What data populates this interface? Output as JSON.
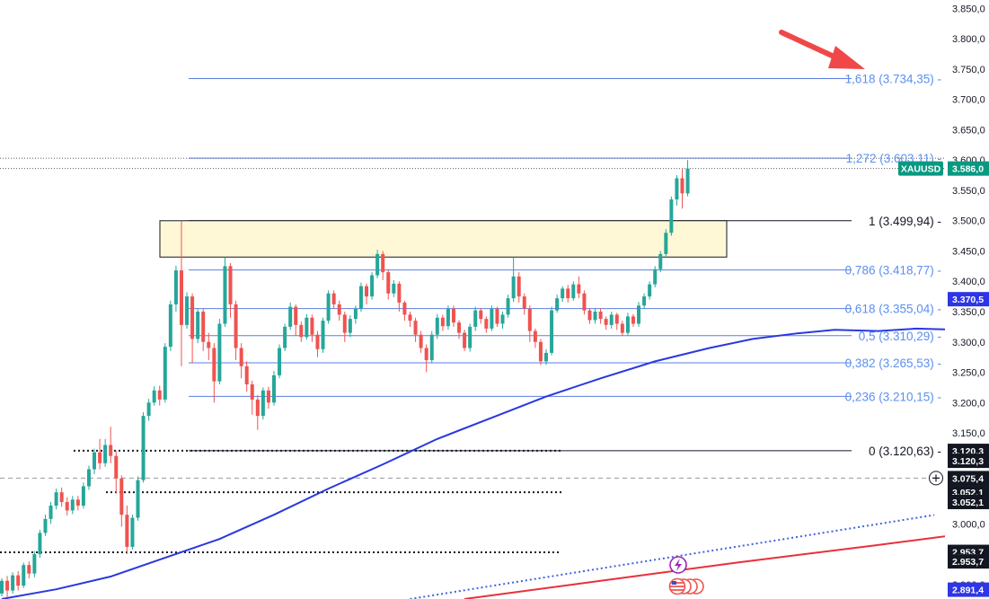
{
  "colors": {
    "up": "#26a69a",
    "down": "#ef5350",
    "fib_line": "#5b7fe0",
    "fib_text": "#5b8ff0",
    "ma_blue": "#2a38e0",
    "ma_red": "#e8303a",
    "trend": "#3f63e0",
    "zone_fill": "#fff8d6",
    "arrow": "#f04848",
    "price_tag": "#089981",
    "ma_tag": "#2e35e6"
  },
  "chart_data": {
    "type": "candlestick",
    "symbol": "XAUUSD",
    "ylim": [
      2876,
      3864
    ],
    "y_ticks": [
      {
        "value": 2900,
        "label": "2.900,0"
      },
      {
        "value": 2950,
        "label": "2.950,0"
      },
      {
        "value": 3000,
        "label": "3.000,0"
      },
      {
        "value": 3050,
        "label": "3.050,0"
      },
      {
        "value": 3100,
        "label": "3.100,0"
      },
      {
        "value": 3150,
        "label": "3.150,0"
      },
      {
        "value": 3200,
        "label": "3.200,0"
      },
      {
        "value": 3250,
        "label": "3.250,0"
      },
      {
        "value": 3300,
        "label": "3.300,0"
      },
      {
        "value": 3350,
        "label": "3.350,0"
      },
      {
        "value": 3400,
        "label": "3.400,0"
      },
      {
        "value": 3450,
        "label": "3.450,0"
      },
      {
        "value": 3500,
        "label": "3.500,0"
      },
      {
        "value": 3550,
        "label": "3.550,0"
      },
      {
        "value": 3600,
        "label": "3.600,0"
      },
      {
        "value": 3650,
        "label": "3.650,0"
      },
      {
        "value": 3700,
        "label": "3.700,0"
      },
      {
        "value": 3750,
        "label": "3.750,0"
      },
      {
        "value": 3800,
        "label": "3.800,0"
      },
      {
        "value": 3850,
        "label": "3.850,0"
      }
    ],
    "fib_levels": [
      {
        "ratio": "1,618",
        "value": 3734.35,
        "label": "1,618 (3.734,35)"
      },
      {
        "ratio": "1,272",
        "value": 3603.11,
        "label": "1,272 (3.603,11)"
      },
      {
        "ratio": "1",
        "value": 3499.94,
        "label": "1 (3.499,94)"
      },
      {
        "ratio": "0,786",
        "value": 3418.77,
        "label": "0,786 (3.418,77)"
      },
      {
        "ratio": "0,618",
        "value": 3355.04,
        "label": "0,618 (3.355,04)"
      },
      {
        "ratio": "0,5",
        "value": 3310.29,
        "label": "0,5 (3.310,29)"
      },
      {
        "ratio": "0,382",
        "value": 3265.53,
        "label": "0,382 (3.265,53)"
      },
      {
        "ratio": "0,236",
        "value": 3210.15,
        "label": "0,236 (3.210,15)"
      },
      {
        "ratio": "0",
        "value": 3120.63,
        "label": "0 (3.120,63)"
      }
    ],
    "resistance_zone": {
      "top": 3499.94,
      "bottom": 3440
    },
    "support_levels": [
      3120.63,
      3052,
      2953
    ],
    "horizontal_dashed": 3075.4,
    "price_tags": [
      {
        "label": "XAUUSD",
        "kind": "symbol",
        "value": 3586
      },
      {
        "label": "3.586,0",
        "kind": "last",
        "value": 3586
      },
      {
        "label": "3.370,5",
        "kind": "ma",
        "value": 3370.5
      },
      {
        "label": "3.120,3",
        "kind": "black",
        "value": 3120.3
      },
      {
        "label": "3.120,3",
        "kind": "black",
        "value": 3104
      },
      {
        "label": "3.075,4",
        "kind": "crosshair",
        "value": 3075.4
      },
      {
        "label": "3.052,1",
        "kind": "black",
        "value": 3052.1
      },
      {
        "label": "3.052,1",
        "kind": "black",
        "value": 3036
      },
      {
        "label": "2.953,7",
        "kind": "black",
        "value": 2953.7
      },
      {
        "label": "2.953,7",
        "kind": "black",
        "value": 2938
      },
      {
        "label": "2.891,4",
        "kind": "blue",
        "value": 2891.4
      }
    ],
    "candles": [
      [
        2885,
        2906,
        2880,
        2910
      ],
      [
        2906,
        2890,
        2878,
        2914
      ],
      [
        2890,
        2915,
        2885,
        2920
      ],
      [
        2915,
        2898,
        2890,
        2922
      ],
      [
        2898,
        2932,
        2894,
        2936
      ],
      [
        2932,
        2918,
        2910,
        2938
      ],
      [
        2918,
        2950,
        2912,
        2955
      ],
      [
        2950,
        2985,
        2944,
        2990
      ],
      [
        2985,
        3008,
        2980,
        3015
      ],
      [
        3008,
        3030,
        3000,
        3036
      ],
      [
        3030,
        3052,
        3024,
        3058
      ],
      [
        3052,
        3036,
        3028,
        3060
      ],
      [
        3036,
        3022,
        3014,
        3044
      ],
      [
        3022,
        3040,
        3016,
        3046
      ],
      [
        3040,
        3030,
        3022,
        3046
      ],
      [
        3030,
        3062,
        3025,
        3068
      ],
      [
        3062,
        3090,
        3056,
        3096
      ],
      [
        3090,
        3118,
        3082,
        3124
      ],
      [
        3118,
        3100,
        3090,
        3140
      ],
      [
        3100,
        3130,
        3094,
        3140
      ],
      [
        3130,
        3112,
        3100,
        3160
      ],
      [
        3112,
        3075,
        3050,
        3120
      ],
      [
        3075,
        3015,
        2995,
        3080
      ],
      [
        3015,
        2962,
        2950,
        3030
      ],
      [
        2962,
        3010,
        2958,
        3015
      ],
      [
        3010,
        3072,
        3005,
        3078
      ],
      [
        3072,
        3178,
        3068,
        3184
      ],
      [
        3178,
        3200,
        3170,
        3206
      ],
      [
        3200,
        3220,
        3195,
        3227
      ],
      [
        3220,
        3205,
        3195,
        3228
      ],
      [
        3205,
        3292,
        3200,
        3298
      ],
      [
        3292,
        3362,
        3285,
        3368
      ],
      [
        3362,
        3418,
        3350,
        3426
      ],
      [
        3418,
        3328,
        3260,
        3500
      ],
      [
        3328,
        3375,
        3322,
        3382
      ],
      [
        3375,
        3305,
        3265,
        3380
      ],
      [
        3305,
        3350,
        3298,
        3356
      ],
      [
        3350,
        3300,
        3285,
        3355
      ],
      [
        3300,
        3290,
        3270,
        3315
      ],
      [
        3290,
        3235,
        3200,
        3298
      ],
      [
        3235,
        3330,
        3230,
        3338
      ],
      [
        3330,
        3425,
        3325,
        3440
      ],
      [
        3425,
        3362,
        3340,
        3430
      ],
      [
        3362,
        3290,
        3270,
        3368
      ],
      [
        3290,
        3260,
        3240,
        3298
      ],
      [
        3260,
        3230,
        3218,
        3268
      ],
      [
        3230,
        3205,
        3180,
        3236
      ],
      [
        3205,
        3178,
        3155,
        3212
      ],
      [
        3178,
        3220,
        3172,
        3225
      ],
      [
        3220,
        3200,
        3190,
        3226
      ],
      [
        3200,
        3245,
        3195,
        3252
      ],
      [
        3245,
        3290,
        3240,
        3296
      ],
      [
        3290,
        3325,
        3285,
        3330
      ],
      [
        3325,
        3358,
        3320,
        3365
      ],
      [
        3358,
        3328,
        3310,
        3362
      ],
      [
        3328,
        3308,
        3300,
        3334
      ],
      [
        3308,
        3340,
        3304,
        3346
      ],
      [
        3340,
        3312,
        3300,
        3345
      ],
      [
        3312,
        3288,
        3275,
        3318
      ],
      [
        3288,
        3335,
        3282,
        3340
      ],
      [
        3335,
        3380,
        3330,
        3385
      ],
      [
        3380,
        3362,
        3355,
        3385
      ],
      [
        3362,
        3345,
        3335,
        3368
      ],
      [
        3345,
        3315,
        3300,
        3350
      ],
      [
        3315,
        3338,
        3308,
        3344
      ],
      [
        3338,
        3355,
        3330,
        3360
      ],
      [
        3355,
        3392,
        3350,
        3398
      ],
      [
        3392,
        3375,
        3362,
        3396
      ],
      [
        3375,
        3410,
        3370,
        3415
      ],
      [
        3410,
        3445,
        3405,
        3452
      ],
      [
        3445,
        3415,
        3402,
        3450
      ],
      [
        3415,
        3380,
        3370,
        3420
      ],
      [
        3380,
        3396,
        3374,
        3402
      ],
      [
        3396,
        3365,
        3350,
        3400
      ],
      [
        3365,
        3345,
        3335,
        3368
      ],
      [
        3345,
        3335,
        3325,
        3350
      ],
      [
        3335,
        3312,
        3300,
        3340
      ],
      [
        3312,
        3290,
        3282,
        3318
      ],
      [
        3290,
        3270,
        3250,
        3296
      ],
      [
        3270,
        3312,
        3265,
        3318
      ],
      [
        3312,
        3340,
        3305,
        3346
      ],
      [
        3340,
        3326,
        3318,
        3345
      ],
      [
        3326,
        3355,
        3320,
        3360
      ],
      [
        3355,
        3332,
        3325,
        3360
      ],
      [
        3332,
        3315,
        3305,
        3336
      ],
      [
        3315,
        3290,
        3285,
        3320
      ],
      [
        3290,
        3325,
        3284,
        3330
      ],
      [
        3325,
        3352,
        3318,
        3358
      ],
      [
        3352,
        3338,
        3330,
        3356
      ],
      [
        3338,
        3322,
        3315,
        3342
      ],
      [
        3322,
        3355,
        3318,
        3360
      ],
      [
        3355,
        3330,
        3325,
        3358
      ],
      [
        3330,
        3345,
        3322,
        3350
      ],
      [
        3345,
        3372,
        3340,
        3378
      ],
      [
        3372,
        3408,
        3366,
        3440
      ],
      [
        3408,
        3375,
        3365,
        3415
      ],
      [
        3375,
        3355,
        3345,
        3380
      ],
      [
        3355,
        3318,
        3300,
        3360
      ],
      [
        3318,
        3300,
        3290,
        3322
      ],
      [
        3300,
        3268,
        3262,
        3305
      ],
      [
        3268,
        3282,
        3262,
        3288
      ],
      [
        3282,
        3352,
        3278,
        3358
      ],
      [
        3352,
        3372,
        3348,
        3378
      ],
      [
        3372,
        3388,
        3366,
        3392
      ],
      [
        3388,
        3372,
        3365,
        3394
      ],
      [
        3372,
        3395,
        3368,
        3400
      ],
      [
        3395,
        3380,
        3372,
        3408
      ],
      [
        3380,
        3352,
        3345,
        3385
      ],
      [
        3352,
        3336,
        3330,
        3356
      ],
      [
        3336,
        3350,
        3330,
        3356
      ],
      [
        3350,
        3338,
        3330,
        3356
      ],
      [
        3338,
        3328,
        3320,
        3342
      ],
      [
        3328,
        3345,
        3322,
        3350
      ],
      [
        3345,
        3330,
        3320,
        3348
      ],
      [
        3330,
        3315,
        3310,
        3335
      ],
      [
        3315,
        3342,
        3310,
        3348
      ],
      [
        3342,
        3330,
        3325,
        3346
      ],
      [
        3330,
        3360,
        3325,
        3366
      ],
      [
        3360,
        3375,
        3355,
        3380
      ],
      [
        3375,
        3395,
        3370,
        3400
      ],
      [
        3395,
        3420,
        3390,
        3425
      ],
      [
        3420,
        3445,
        3415,
        3450
      ],
      [
        3445,
        3480,
        3440,
        3486
      ],
      [
        3480,
        3535,
        3475,
        3540
      ],
      [
        3535,
        3570,
        3525,
        3575
      ],
      [
        3570,
        3545,
        3520,
        3585
      ],
      [
        3545,
        3586,
        3540,
        3600
      ]
    ],
    "ma_blue": [
      [
        0,
        2876
      ],
      [
        10,
        2892
      ],
      [
        20,
        2913
      ],
      [
        30,
        2944
      ],
      [
        40,
        2975
      ],
      [
        50,
        3015
      ],
      [
        60,
        3058
      ],
      [
        70,
        3098
      ],
      [
        80,
        3140
      ],
      [
        90,
        3175
      ],
      [
        100,
        3210
      ],
      [
        110,
        3240
      ],
      [
        120,
        3268
      ],
      [
        130,
        3290
      ],
      [
        138,
        3305
      ],
      [
        146,
        3314
      ],
      [
        153,
        3320
      ],
      [
        161,
        3318
      ],
      [
        168,
        3322
      ],
      [
        176,
        3320
      ],
      [
        182,
        3324
      ],
      [
        188,
        3338
      ],
      [
        200,
        3350
      ],
      [
        212,
        3352
      ],
      [
        225,
        3352
      ],
      [
        236,
        3350
      ],
      [
        248,
        3354
      ],
      [
        260,
        3354
      ],
      [
        270,
        3370
      ]
    ],
    "ma_red": [
      [
        85,
        2876
      ],
      [
        110,
        2906
      ],
      [
        135,
        2936
      ],
      [
        160,
        2964
      ],
      [
        185,
        2993
      ],
      [
        210,
        3018
      ],
      [
        230,
        3034
      ],
      [
        250,
        3054
      ],
      [
        265,
        3076
      ],
      [
        275,
        3092
      ]
    ],
    "trendline": [
      [
        75,
        2876
      ],
      [
        303,
        3204
      ]
    ]
  }
}
